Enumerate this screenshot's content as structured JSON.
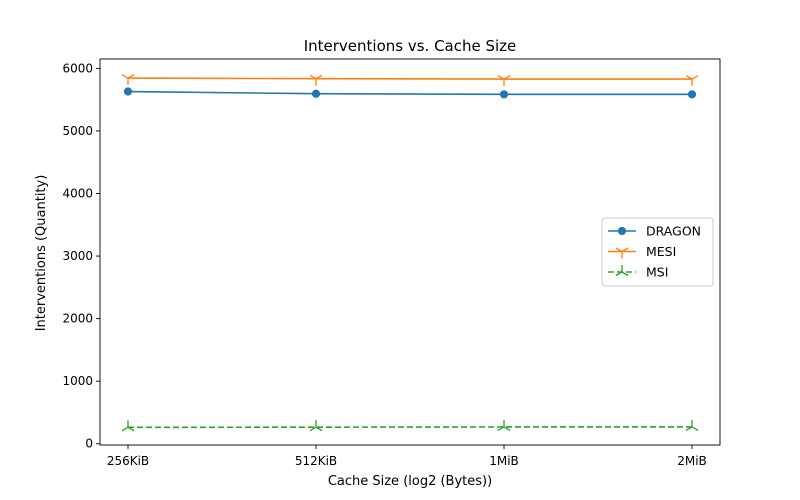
{
  "chart_data": {
    "type": "line",
    "title": "Interventions vs. Cache Size",
    "xlabel": "Cache Size (log2 (Bytes))",
    "ylabel": "Interventions (Quantity)",
    "categories": [
      "256KiB",
      "512KiB",
      "1MiB",
      "2MiB"
    ],
    "yticks": [
      0,
      1000,
      2000,
      3000,
      4000,
      5000,
      6000
    ],
    "ylim": [
      -20,
      6150
    ],
    "grid": false,
    "legend_position": "center-right",
    "series": [
      {
        "name": "DRAGON",
        "values": [
          5630,
          5595,
          5585,
          5585
        ],
        "color": "#1f77b4",
        "marker": "circle",
        "linestyle": "solid"
      },
      {
        "name": "MESI",
        "values": [
          5845,
          5835,
          5830,
          5830
        ],
        "color": "#ff7f0e",
        "marker": "tri_down",
        "linestyle": "solid"
      },
      {
        "name": "MSI",
        "values": [
          262,
          265,
          268,
          268
        ],
        "color": "#2ca02c",
        "marker": "tri_up",
        "linestyle": "dashed"
      }
    ]
  }
}
